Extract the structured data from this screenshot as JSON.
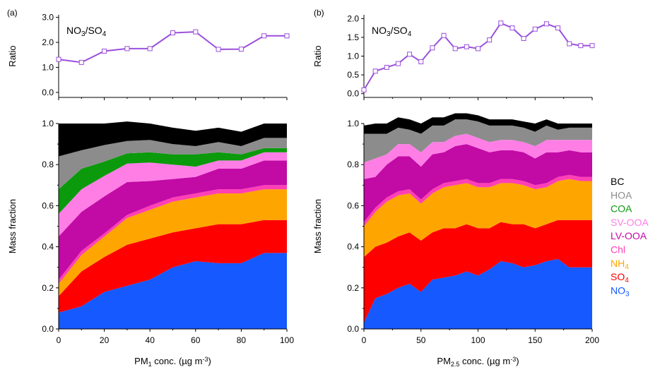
{
  "colors": {
    "BC": "#000000",
    "HOA": "#8c8c8c",
    "COA": "#0b9a0b",
    "SV-OOA": "#ff7ee6",
    "LV-OOA": "#c20aa5",
    "Chl": "#ff3fb6",
    "NH4": "#ffa500",
    "SO4": "#ff0000",
    "NO3": "#1659ff",
    "ratio_line": "#9a4fdc"
  },
  "legend": [
    {
      "key": "BC",
      "label": "BC"
    },
    {
      "key": "HOA",
      "label": "HOA"
    },
    {
      "key": "COA",
      "label": "COA"
    },
    {
      "key": "SV-OOA",
      "label": "SV-OOA"
    },
    {
      "key": "LV-OOA",
      "label": "LV-OOA"
    },
    {
      "key": "Chl",
      "label": "Chl"
    },
    {
      "key": "NH4",
      "label": "NH",
      "sub": "4"
    },
    {
      "key": "SO4",
      "label": "SO",
      "sub": "4"
    },
    {
      "key": "NO3",
      "label": "NO",
      "sub": "3"
    }
  ],
  "chart_data": [
    {
      "id": "a-ratio",
      "type": "line",
      "panel_label": "(a)",
      "title": {
        "a": "NO",
        "sub1": "3",
        "slash": "/SO",
        "sub2": "4"
      },
      "ylabel": "Ratio",
      "ylim": [
        -0.2,
        3.1
      ],
      "yticks": [
        0.0,
        1.0,
        2.0,
        3.0
      ],
      "yticklabels": [
        "0.0",
        "1.0",
        "2.0",
        "3.0"
      ],
      "xlim": [
        0,
        100
      ],
      "xticks": [
        0,
        20,
        40,
        60,
        80,
        100
      ],
      "x": [
        0,
        10,
        20,
        30,
        40,
        50,
        60,
        70,
        80,
        90,
        100
      ],
      "values": [
        1.32,
        1.2,
        1.65,
        1.75,
        1.75,
        2.38,
        2.42,
        1.72,
        1.73,
        2.26,
        2.26
      ]
    },
    {
      "id": "b-ratio",
      "type": "line",
      "panel_label": "(b)",
      "title": {
        "a": "NO",
        "sub1": "3",
        "slash": "/SO",
        "sub2": "4"
      },
      "ylabel": "Ratio",
      "ylim": [
        -0.1,
        2.1
      ],
      "yticks": [
        0.0,
        0.5,
        1.0,
        1.5,
        2.0
      ],
      "yticklabels": [
        "0.0",
        "0.5",
        "1.0",
        "1.5",
        "2.0"
      ],
      "xlim": [
        0,
        200
      ],
      "xticks": [
        0,
        50,
        100,
        150,
        200
      ],
      "x": [
        0,
        10,
        20,
        30,
        40,
        50,
        60,
        70,
        80,
        90,
        100,
        110,
        120,
        130,
        140,
        150,
        160,
        170,
        180,
        190,
        200
      ],
      "values": [
        0.1,
        0.6,
        0.7,
        0.8,
        1.05,
        0.85,
        1.22,
        1.55,
        1.2,
        1.25,
        1.2,
        1.43,
        1.88,
        1.75,
        1.47,
        1.72,
        1.86,
        1.75,
        1.33,
        1.28,
        1.28
      ]
    },
    {
      "id": "a-fraction",
      "type": "area",
      "stacked": true,
      "ylabel": "Mass fraction",
      "xlabel": {
        "pre": "PM",
        "sub": "1",
        "post": " conc. (µg m",
        "sup": "-3",
        "end": ")"
      },
      "xlim": [
        0,
        100
      ],
      "xticks": [
        0,
        20,
        40,
        60,
        80,
        100
      ],
      "xticklabels": [
        "0",
        "20",
        "40",
        "60",
        "80",
        "100"
      ],
      "ylim": [
        0,
        1.0
      ],
      "yticks": [
        0.0,
        0.2,
        0.4,
        0.6,
        0.8,
        1.0
      ],
      "yticklabels": [
        "0.0",
        "0.2",
        "0.4",
        "0.6",
        "0.8",
        "1.0"
      ],
      "x": [
        0,
        10,
        20,
        30,
        40,
        50,
        60,
        70,
        80,
        90,
        100
      ],
      "series": [
        {
          "key": "NO3",
          "values": [
            0.08,
            0.11,
            0.18,
            0.21,
            0.24,
            0.3,
            0.33,
            0.32,
            0.32,
            0.37,
            0.37
          ]
        },
        {
          "key": "SO4",
          "values": [
            0.08,
            0.17,
            0.17,
            0.2,
            0.2,
            0.17,
            0.16,
            0.19,
            0.19,
            0.16,
            0.16
          ]
        },
        {
          "key": "NH4",
          "values": [
            0.06,
            0.08,
            0.1,
            0.13,
            0.14,
            0.15,
            0.15,
            0.15,
            0.15,
            0.15,
            0.15
          ]
        },
        {
          "key": "Chl",
          "values": [
            0.02,
            0.02,
            0.015,
            0.015,
            0.02,
            0.02,
            0.02,
            0.02,
            0.02,
            0.02,
            0.02
          ]
        },
        {
          "key": "LV-OOA",
          "values": [
            0.21,
            0.19,
            0.18,
            0.16,
            0.12,
            0.09,
            0.08,
            0.1,
            0.1,
            0.12,
            0.12
          ]
        },
        {
          "key": "SV-OOA",
          "values": [
            0.11,
            0.11,
            0.1,
            0.09,
            0.09,
            0.07,
            0.05,
            0.04,
            0.04,
            0.04,
            0.04
          ]
        },
        {
          "key": "COA",
          "values": [
            0.12,
            0.1,
            0.07,
            0.05,
            0.05,
            0.05,
            0.06,
            0.04,
            0.03,
            0.02,
            0.02
          ]
        },
        {
          "key": "HOA",
          "values": [
            0.16,
            0.09,
            0.08,
            0.06,
            0.06,
            0.05,
            0.04,
            0.05,
            0.04,
            0.05,
            0.05
          ]
        },
        {
          "key": "BC",
          "values": [
            0.16,
            0.13,
            0.105,
            0.095,
            0.08,
            0.08,
            0.075,
            0.07,
            0.07,
            0.07,
            0.07
          ]
        }
      ]
    },
    {
      "id": "b-fraction",
      "type": "area",
      "stacked": true,
      "ylabel": "Mass fraction",
      "xlabel": {
        "pre": "PM",
        "sub": "2.5",
        "post": " conc. (µg m",
        "sup": "-3",
        "end": ")"
      },
      "xlim": [
        0,
        200
      ],
      "xticks": [
        0,
        50,
        100,
        150,
        200
      ],
      "xticklabels": [
        "0",
        "50",
        "100",
        "150",
        "200"
      ],
      "ylim": [
        0,
        1.0
      ],
      "yticks": [
        0.0,
        0.2,
        0.4,
        0.6,
        0.8,
        1.0
      ],
      "yticklabels": [
        "0.0",
        "0.2",
        "0.4",
        "0.6",
        "0.8",
        "1.0"
      ],
      "x": [
        0,
        10,
        20,
        30,
        40,
        50,
        60,
        70,
        80,
        90,
        100,
        110,
        120,
        130,
        140,
        150,
        160,
        170,
        180,
        190,
        200
      ],
      "series": [
        {
          "key": "NO3",
          "values": [
            0.03,
            0.15,
            0.17,
            0.2,
            0.22,
            0.18,
            0.24,
            0.25,
            0.26,
            0.28,
            0.26,
            0.29,
            0.33,
            0.32,
            0.3,
            0.31,
            0.33,
            0.34,
            0.3,
            0.3,
            0.3
          ]
        },
        {
          "key": "SO4",
          "values": [
            0.32,
            0.25,
            0.25,
            0.25,
            0.25,
            0.25,
            0.23,
            0.24,
            0.23,
            0.23,
            0.23,
            0.2,
            0.19,
            0.19,
            0.21,
            0.18,
            0.18,
            0.19,
            0.23,
            0.23,
            0.23
          ]
        },
        {
          "key": "NH4",
          "values": [
            0.15,
            0.17,
            0.2,
            0.2,
            0.19,
            0.18,
            0.19,
            0.2,
            0.21,
            0.2,
            0.2,
            0.2,
            0.19,
            0.2,
            0.19,
            0.19,
            0.18,
            0.19,
            0.2,
            0.19,
            0.19
          ]
        },
        {
          "key": "Chl",
          "values": [
            0.02,
            0.02,
            0.02,
            0.02,
            0.02,
            0.02,
            0.02,
            0.02,
            0.02,
            0.02,
            0.02,
            0.02,
            0.02,
            0.02,
            0.02,
            0.02,
            0.02,
            0.02,
            0.02,
            0.02,
            0.02
          ]
        },
        {
          "key": "LV-OOA",
          "values": [
            0.21,
            0.15,
            0.16,
            0.17,
            0.16,
            0.16,
            0.17,
            0.15,
            0.17,
            0.17,
            0.17,
            0.15,
            0.14,
            0.14,
            0.14,
            0.13,
            0.15,
            0.12,
            0.12,
            0.12,
            0.12
          ]
        },
        {
          "key": "SV-OOA",
          "values": [
            0.08,
            0.09,
            0.05,
            0.06,
            0.06,
            0.07,
            0.06,
            0.05,
            0.05,
            0.05,
            0.05,
            0.05,
            0.05,
            0.05,
            0.05,
            0.06,
            0.06,
            0.06,
            0.05,
            0.06,
            0.06
          ]
        },
        {
          "key": "COA",
          "values": [
            0,
            0,
            0,
            0,
            0,
            0,
            0,
            0,
            0,
            0,
            0,
            0,
            0,
            0,
            0,
            0,
            0,
            0,
            0,
            0,
            0
          ]
        },
        {
          "key": "HOA",
          "values": [
            0.14,
            0.12,
            0.1,
            0.08,
            0.07,
            0.09,
            0.08,
            0.08,
            0.08,
            0.07,
            0.08,
            0.08,
            0.07,
            0.07,
            0.07,
            0.07,
            0.07,
            0.05,
            0.06,
            0.06,
            0.06
          ]
        },
        {
          "key": "BC",
          "values": [
            0.04,
            0.05,
            0.05,
            0.05,
            0.05,
            0.05,
            0.04,
            0.04,
            0.03,
            0.03,
            0.03,
            0.03,
            0.03,
            0.03,
            0.03,
            0.04,
            0.03,
            0.03,
            0.02,
            0.02,
            0.02
          ]
        }
      ]
    }
  ]
}
